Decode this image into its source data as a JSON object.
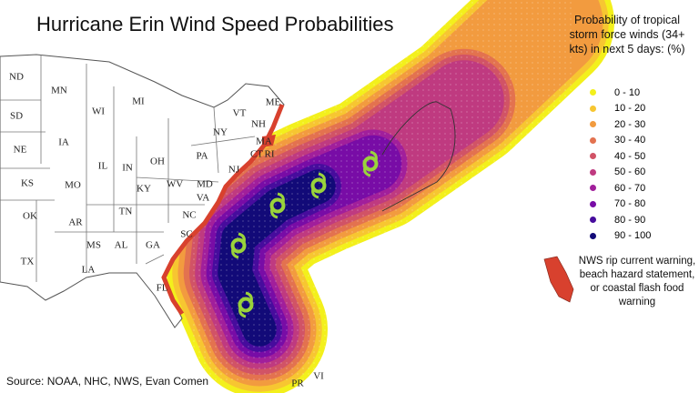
{
  "title": "Hurricane Erin Wind Speed Probabilities",
  "legend": {
    "title": "Probability of tropical storm force winds (34+ kts) in next 5 days: (%)",
    "items": [
      {
        "label": "0 - 10",
        "color": "#f3f01c"
      },
      {
        "label": "10 - 20",
        "color": "#f7c631"
      },
      {
        "label": "20 - 30",
        "color": "#f29b3f"
      },
      {
        "label": "30 - 40",
        "color": "#e3724f"
      },
      {
        "label": "40 - 50",
        "color": "#d15366"
      },
      {
        "label": "50 - 60",
        "color": "#bf3a80"
      },
      {
        "label": "60 - 70",
        "color": "#a11f9b"
      },
      {
        "label": "70 - 80",
        "color": "#780ca6"
      },
      {
        "label": "80 - 90",
        "color": "#470c9d"
      },
      {
        "label": "90 - 100",
        "color": "#120a78"
      }
    ]
  },
  "warning_legend": {
    "label": "NWS rip current warning, beach hazard statement, or coastal flash food warning",
    "color": "#d8412e"
  },
  "source": "Source: NOAA, NHC, NWS, Evan Comen",
  "map_labels": [
    "ND",
    "MN",
    "MI",
    "WI",
    "SD",
    "NE",
    "IA",
    "IL",
    "IN",
    "OH",
    "PA",
    "NY",
    "VT",
    "NH",
    "ME",
    "MA",
    "CT",
    "RI",
    "NJ",
    "MD",
    "WV",
    "VA",
    "KY",
    "KS",
    "MO",
    "TN",
    "NC",
    "OK",
    "AR",
    "MS",
    "AL",
    "GA",
    "SC",
    "TX",
    "LA",
    "FL",
    "PR",
    "VI"
  ]
}
